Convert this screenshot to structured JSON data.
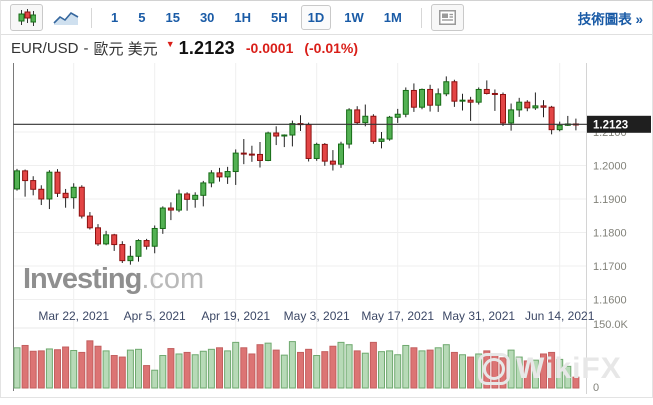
{
  "toolbar": {
    "chart_type_buttons": [
      {
        "name": "candlestick-chart",
        "selected": true
      },
      {
        "name": "line-chart",
        "selected": false
      }
    ],
    "timeframes": [
      {
        "label": "1",
        "selected": false
      },
      {
        "label": "5",
        "selected": false
      },
      {
        "label": "15",
        "selected": false
      },
      {
        "label": "30",
        "selected": false
      },
      {
        "label": "1H",
        "selected": false
      },
      {
        "label": "5H",
        "selected": false
      },
      {
        "label": "1D",
        "selected": true
      },
      {
        "label": "1W",
        "selected": false
      },
      {
        "label": "1M",
        "selected": false
      }
    ],
    "technical_chart_link": "技術圖表 »"
  },
  "header": {
    "symbol": "EUR/USD",
    "dash": "-",
    "name_local": "歐元 美元",
    "price": "1.2123",
    "change": "-0.0001",
    "change_pct": "(-0.01%)",
    "direction": "down"
  },
  "watermarks": {
    "investing_main": "Investing",
    "investing_suffix": ".com",
    "wikifx": "WikiFX"
  },
  "colors": {
    "accent_blue": "#1a5ba6",
    "negative_red": "#d91e18",
    "candle_up_fill": "#53b153",
    "candle_up_stroke": "#166b16",
    "candle_down_fill": "#e34545",
    "candle_down_stroke": "#8e1111",
    "volume_up_fill": "#b7dab7",
    "volume_up_stroke": "#6fa96f",
    "volume_down_fill": "#dc7474",
    "volume_down_stroke": "#c35f5f",
    "grid": "#efefef",
    "price_line": "#333333",
    "price_tag_bg": "#1f1f1f"
  },
  "chart_data": {
    "type": "candlestick",
    "symbol": "EUR/USD",
    "interval": "1D",
    "last_price": 1.2123,
    "price_tag": "1.2123",
    "y_axis": {
      "side": "right",
      "tick_labels": [
        "1.2100",
        "1.2000",
        "1.1900",
        "1.1800",
        "1.1700",
        "1.1600"
      ]
    },
    "volume_axis": {
      "top_label": "150.0K",
      "bottom_label": "0",
      "max_k": 150
    },
    "x_labels": [
      {
        "i": 7,
        "label": "Mar 22, 2021"
      },
      {
        "i": 17,
        "label": "Apr 5, 2021"
      },
      {
        "i": 27,
        "label": "Apr 19, 2021"
      },
      {
        "i": 37,
        "label": "May 3, 2021"
      },
      {
        "i": 47,
        "label": "May 17, 2021"
      },
      {
        "i": 57,
        "label": "May 31, 2021"
      },
      {
        "i": 67,
        "label": "Jun 14, 2021"
      }
    ],
    "ohlc": [
      [
        1.193,
        1.199,
        1.1925,
        1.1984
      ],
      [
        1.1984,
        1.1988,
        1.1907,
        1.1955
      ],
      [
        1.1955,
        1.1968,
        1.1911,
        1.1929
      ],
      [
        1.1929,
        1.1941,
        1.1882,
        1.19
      ],
      [
        1.19,
        1.1986,
        1.187,
        1.198
      ],
      [
        1.198,
        1.1989,
        1.1906,
        1.1917
      ],
      [
        1.1917,
        1.193,
        1.1874,
        1.1904
      ],
      [
        1.1904,
        1.1947,
        1.1871,
        1.1935
      ],
      [
        1.1935,
        1.1941,
        1.1842,
        1.1849
      ],
      [
        1.1849,
        1.1861,
        1.1809,
        1.1814
      ],
      [
        1.1814,
        1.1825,
        1.176,
        1.1766
      ],
      [
        1.1766,
        1.1805,
        1.1762,
        1.1793
      ],
      [
        1.1793,
        1.1796,
        1.1745,
        1.1764
      ],
      [
        1.1764,
        1.1774,
        1.1709,
        1.1716
      ],
      [
        1.1716,
        1.176,
        1.1704,
        1.1729
      ],
      [
        1.1729,
        1.178,
        1.1713,
        1.1776
      ],
      [
        1.1776,
        1.1781,
        1.1749,
        1.1759
      ],
      [
        1.1759,
        1.1821,
        1.1738,
        1.1812
      ],
      [
        1.1812,
        1.1878,
        1.1796,
        1.1873
      ],
      [
        1.1873,
        1.189,
        1.1837,
        1.1867
      ],
      [
        1.1867,
        1.1928,
        1.1861,
        1.1915
      ],
      [
        1.1915,
        1.192,
        1.1865,
        1.1899
      ],
      [
        1.1899,
        1.192,
        1.1874,
        1.1911
      ],
      [
        1.1911,
        1.1954,
        1.1878,
        1.1948
      ],
      [
        1.1948,
        1.1986,
        1.1935,
        1.1978
      ],
      [
        1.1978,
        1.1993,
        1.1952,
        1.1966
      ],
      [
        1.1966,
        1.1996,
        1.1945,
        1.1982
      ],
      [
        1.1982,
        1.2048,
        1.1942,
        1.2037
      ],
      [
        1.2037,
        1.2079,
        1.2004,
        1.2034
      ],
      [
        1.2034,
        1.2059,
        1.2011,
        1.2033
      ],
      [
        1.2033,
        1.207,
        1.1994,
        1.2015
      ],
      [
        1.2015,
        1.2101,
        1.2013,
        1.2097
      ],
      [
        1.2097,
        1.2117,
        1.2061,
        1.2088
      ],
      [
        1.2088,
        1.2093,
        1.2055,
        1.2091
      ],
      [
        1.2091,
        1.2134,
        1.2057,
        1.2125
      ],
      [
        1.2125,
        1.215,
        1.2103,
        1.2122
      ],
      [
        1.2122,
        1.2128,
        1.2012,
        1.2021
      ],
      [
        1.2021,
        1.2068,
        1.2014,
        1.2063
      ],
      [
        1.2063,
        1.2067,
        1.1999,
        1.2013
      ],
      [
        1.2013,
        1.2046,
        1.1985,
        1.2004
      ],
      [
        1.2004,
        1.2071,
        1.1993,
        1.2064
      ],
      [
        1.2064,
        1.2171,
        1.2051,
        1.2166
      ],
      [
        1.2166,
        1.2177,
        1.2123,
        1.2128
      ],
      [
        1.2128,
        1.2182,
        1.2117,
        1.2147
      ],
      [
        1.2147,
        1.2153,
        1.2065,
        1.2072
      ],
      [
        1.2072,
        1.21,
        1.2051,
        1.2079
      ],
      [
        1.2079,
        1.2148,
        1.2074,
        1.2144
      ],
      [
        1.2144,
        1.2169,
        1.2127,
        1.2153
      ],
      [
        1.2153,
        1.2233,
        1.2144,
        1.2224
      ],
      [
        1.2224,
        1.2245,
        1.216,
        1.2174
      ],
      [
        1.2174,
        1.223,
        1.2168,
        1.2227
      ],
      [
        1.2227,
        1.2241,
        1.2161,
        1.218
      ],
      [
        1.218,
        1.223,
        1.216,
        1.2214
      ],
      [
        1.2214,
        1.2266,
        1.2207,
        1.225
      ],
      [
        1.225,
        1.2256,
        1.2175,
        1.2192
      ],
      [
        1.2192,
        1.2214,
        1.2164,
        1.2195
      ],
      [
        1.2195,
        1.2205,
        1.2133,
        1.2189
      ],
      [
        1.2189,
        1.2233,
        1.2182,
        1.2227
      ],
      [
        1.2227,
        1.2254,
        1.2212,
        1.2215
      ],
      [
        1.2215,
        1.2227,
        1.2163,
        1.2212
      ],
      [
        1.2212,
        1.2218,
        1.2118,
        1.2127
      ],
      [
        1.2127,
        1.2185,
        1.2104,
        1.2166
      ],
      [
        1.2166,
        1.2202,
        1.2145,
        1.2189
      ],
      [
        1.2189,
        1.2195,
        1.2162,
        1.2172
      ],
      [
        1.2172,
        1.2218,
        1.2166,
        1.2178
      ],
      [
        1.2178,
        1.2195,
        1.2144,
        1.2174
      ],
      [
        1.2174,
        1.2178,
        1.2093,
        1.2107
      ],
      [
        1.2107,
        1.2131,
        1.2102,
        1.212
      ],
      [
        1.212,
        1.2148,
        1.2118,
        1.2124
      ],
      [
        1.2124,
        1.214,
        1.2105,
        1.2123
      ]
    ],
    "volume_k": [
      104,
      110,
      95,
      96,
      101,
      99,
      106,
      97,
      92,
      122,
      108,
      96,
      84,
      80,
      98,
      100,
      58,
      46,
      84,
      102,
      88,
      92,
      86,
      95,
      100,
      104,
      96,
      118,
      104,
      88,
      112,
      116,
      98,
      85,
      120,
      92,
      100,
      84,
      94,
      108,
      118,
      112,
      96,
      90,
      118,
      94,
      96,
      86,
      110,
      104,
      96,
      98,
      104,
      112,
      92,
      86,
      80,
      88,
      96,
      84,
      78,
      98,
      80,
      70,
      72,
      88,
      92,
      74,
      56,
      28
    ]
  }
}
